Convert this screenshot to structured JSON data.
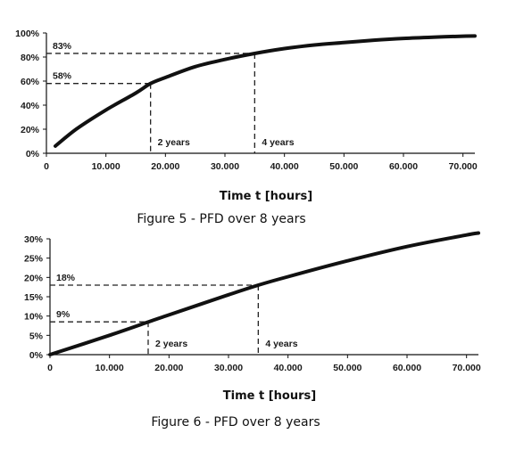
{
  "chart_data": [
    {
      "type": "line",
      "xlabel": "Time t [hours]",
      "caption": "Figure 5 - PFD over 8 years",
      "xlim": [
        0,
        72000
      ],
      "ylim": [
        0,
        100
      ],
      "x_ticks": [
        0,
        10000,
        20000,
        30000,
        40000,
        50000,
        60000,
        70000
      ],
      "x_tick_labels": [
        "0",
        "10.000",
        "20.000",
        "30.000",
        "40.000",
        "50.000",
        "60.000",
        "70.000"
      ],
      "y_ticks": [
        0,
        20,
        40,
        60,
        80,
        100
      ],
      "y_tick_labels": [
        "0%",
        "20%",
        "40%",
        "60%",
        "80%",
        "100%"
      ],
      "series": [
        {
          "x": [
            1500,
            5000,
            10000,
            15000,
            17500,
            20000,
            25000,
            30000,
            35000,
            40000,
            45000,
            50000,
            55000,
            60000,
            65000,
            70000,
            72000
          ],
          "y": [
            6,
            20,
            36,
            50,
            58,
            63,
            72,
            78,
            83,
            87,
            90,
            92,
            94,
            95.5,
            96.5,
            97.3,
            97.5
          ]
        }
      ],
      "annotations": [
        {
          "x": 17500,
          "y": 58,
          "label": "58%",
          "x_label": "2 years"
        },
        {
          "x": 35000,
          "y": 83,
          "label": "83%",
          "x_label": "4 years"
        }
      ]
    },
    {
      "type": "line",
      "xlabel": "Time t [hours]",
      "caption": "Figure 6 - PFD over 8 years",
      "xlim": [
        0,
        72000
      ],
      "ylim": [
        0,
        30
      ],
      "x_ticks": [
        0,
        10000,
        20000,
        30000,
        40000,
        50000,
        60000,
        70000
      ],
      "x_tick_labels": [
        "0",
        "10.000",
        "20.000",
        "30.000",
        "40.000",
        "50.000",
        "60.000",
        "70.000"
      ],
      "y_ticks": [
        0,
        5,
        10,
        15,
        20,
        25,
        30
      ],
      "y_tick_labels": [
        "0%",
        "5%",
        "10%",
        "15%",
        "20%",
        "25%",
        "30%"
      ],
      "series": [
        {
          "x": [
            0,
            10000,
            17500,
            20000,
            30000,
            35000,
            40000,
            50000,
            60000,
            70000,
            72000
          ],
          "y": [
            0,
            5,
            9,
            10.3,
            15.5,
            18,
            20.2,
            24.3,
            28,
            31,
            31.5
          ]
        }
      ],
      "annotations": [
        {
          "x": 16500,
          "y": 8.5,
          "label": "9%",
          "x_label": "2 years"
        },
        {
          "x": 35000,
          "y": 18,
          "label": "18%",
          "x_label": "4 years"
        }
      ]
    }
  ]
}
